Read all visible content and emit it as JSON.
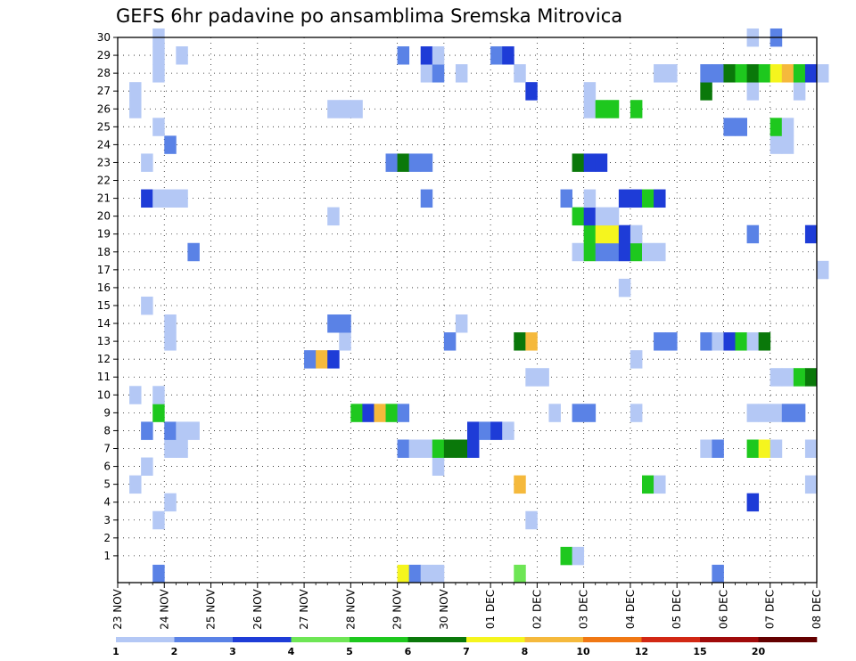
{
  "chart_data": {
    "type": "heatmap",
    "title": "GEFS 6hr padavine po ansamblima Sremska Mitrovica",
    "xlabel": "",
    "ylabel": "",
    "x_step_hours": 6,
    "x_ticks": [
      "23 NOV",
      "24 NOV",
      "25 NOV",
      "26 NOV",
      "27 NOV",
      "28 NOV",
      "29 NOV",
      "30 NOV",
      "01 DEC",
      "02 DEC",
      "03 DEC",
      "04 DEC",
      "05 DEC",
      "06 DEC",
      "07 DEC",
      "08 DEC"
    ],
    "y_ticks": [
      1,
      2,
      3,
      4,
      5,
      6,
      7,
      8,
      9,
      10,
      11,
      12,
      13,
      14,
      15,
      16,
      17,
      18,
      19,
      20,
      21,
      22,
      23,
      24,
      25,
      26,
      27,
      28,
      29,
      30
    ],
    "ylim": [
      0,
      30
    ],
    "grid": true,
    "color_levels": [
      1,
      2,
      3,
      4,
      5,
      6,
      7,
      8,
      10,
      12,
      15,
      20
    ],
    "colorbar_labels": [
      "1",
      "2",
      "3",
      "4",
      "5",
      "6",
      "7",
      "8",
      "10",
      "12",
      "15",
      "20"
    ],
    "colors": [
      "#b4c8f5",
      "#5a82e6",
      "#1e3cd7",
      "#6ee655",
      "#1ec81e",
      "#0a780a",
      "#f5f51e",
      "#f5b93c",
      "#f07814",
      "#d22814",
      "#a00a0a",
      "#640000"
    ],
    "cells": [
      {
        "member": 0,
        "day": "23 NOV",
        "hour": 18,
        "level": 2
      },
      {
        "member": 0,
        "day": "29 NOV",
        "hour": 0,
        "level": 7
      },
      {
        "member": 0,
        "day": "29 NOV",
        "hour": 6,
        "level": 2
      },
      {
        "member": 0,
        "day": "29 NOV",
        "hour": 12,
        "level": 1
      },
      {
        "member": 0,
        "day": "29 NOV",
        "hour": 18,
        "level": 1
      },
      {
        "member": 0,
        "day": "01 DEC",
        "hour": 12,
        "level": 4
      },
      {
        "member": 0,
        "day": "05 DEC",
        "hour": 18,
        "level": 2
      },
      {
        "member": 1,
        "day": "02 DEC",
        "hour": 12,
        "level": 5
      },
      {
        "member": 1,
        "day": "02 DEC",
        "hour": 18,
        "level": 1
      },
      {
        "member": 3,
        "day": "23 NOV",
        "hour": 18,
        "level": 1
      },
      {
        "member": 3,
        "day": "01 DEC",
        "hour": 18,
        "level": 1
      },
      {
        "member": 4,
        "day": "24 NOV",
        "hour": 0,
        "level": 1
      },
      {
        "member": 4,
        "day": "06 DEC",
        "hour": 12,
        "level": 3
      },
      {
        "member": 5,
        "day": "23 NOV",
        "hour": 6,
        "level": 1
      },
      {
        "member": 5,
        "day": "01 DEC",
        "hour": 12,
        "level": 8
      },
      {
        "member": 5,
        "day": "04 DEC",
        "hour": 6,
        "level": 5
      },
      {
        "member": 5,
        "day": "04 DEC",
        "hour": 12,
        "level": 1
      },
      {
        "member": 5,
        "day": "07 DEC",
        "hour": 18,
        "level": 1
      },
      {
        "member": 6,
        "day": "23 NOV",
        "hour": 12,
        "level": 1
      },
      {
        "member": 6,
        "day": "29 NOV",
        "hour": 18,
        "level": 1
      },
      {
        "member": 7,
        "day": "24 NOV",
        "hour": 0,
        "level": 1
      },
      {
        "member": 7,
        "day": "24 NOV",
        "hour": 6,
        "level": 1
      },
      {
        "member": 7,
        "day": "29 NOV",
        "hour": 0,
        "level": 2
      },
      {
        "member": 7,
        "day": "29 NOV",
        "hour": 6,
        "level": 1
      },
      {
        "member": 7,
        "day": "29 NOV",
        "hour": 12,
        "level": 1
      },
      {
        "member": 7,
        "day": "29 NOV",
        "hour": 18,
        "level": 5
      },
      {
        "member": 7,
        "day": "30 NOV",
        "hour": 0,
        "level": 6
      },
      {
        "member": 7,
        "day": "30 NOV",
        "hour": 6,
        "level": 6
      },
      {
        "member": 7,
        "day": "30 NOV",
        "hour": 12,
        "level": 3
      },
      {
        "member": 7,
        "day": "05 DEC",
        "hour": 12,
        "level": 1
      },
      {
        "member": 7,
        "day": "05 DEC",
        "hour": 18,
        "level": 2
      },
      {
        "member": 7,
        "day": "06 DEC",
        "hour": 12,
        "level": 5
      },
      {
        "member": 7,
        "day": "06 DEC",
        "hour": 18,
        "level": 7
      },
      {
        "member": 7,
        "day": "07 DEC",
        "hour": 0,
        "level": 1
      },
      {
        "member": 7,
        "day": "07 DEC",
        "hour": 18,
        "level": 1
      },
      {
        "member": 8,
        "day": "23 NOV",
        "hour": 12,
        "level": 2
      },
      {
        "member": 8,
        "day": "24 NOV",
        "hour": 0,
        "level": 2
      },
      {
        "member": 8,
        "day": "24 NOV",
        "hour": 6,
        "level": 1
      },
      {
        "member": 8,
        "day": "24 NOV",
        "hour": 12,
        "level": 1
      },
      {
        "member": 8,
        "day": "30 NOV",
        "hour": 12,
        "level": 3
      },
      {
        "member": 8,
        "day": "30 NOV",
        "hour": 18,
        "level": 2
      },
      {
        "member": 8,
        "day": "01 DEC",
        "hour": 0,
        "level": 3
      },
      {
        "member": 8,
        "day": "01 DEC",
        "hour": 6,
        "level": 1
      },
      {
        "member": 9,
        "day": "23 NOV",
        "hour": 18,
        "level": 5
      },
      {
        "member": 9,
        "day": "28 NOV",
        "hour": 0,
        "level": 5
      },
      {
        "member": 9,
        "day": "28 NOV",
        "hour": 6,
        "level": 3
      },
      {
        "member": 9,
        "day": "28 NOV",
        "hour": 12,
        "level": 8
      },
      {
        "member": 9,
        "day": "28 NOV",
        "hour": 18,
        "level": 5
      },
      {
        "member": 9,
        "day": "29 NOV",
        "hour": 0,
        "level": 2
      },
      {
        "member": 9,
        "day": "02 DEC",
        "hour": 6,
        "level": 1
      },
      {
        "member": 9,
        "day": "02 DEC",
        "hour": 18,
        "level": 2
      },
      {
        "member": 9,
        "day": "03 DEC",
        "hour": 0,
        "level": 2
      },
      {
        "member": 9,
        "day": "04 DEC",
        "hour": 0,
        "level": 1
      },
      {
        "member": 9,
        "day": "06 DEC",
        "hour": 12,
        "level": 1
      },
      {
        "member": 9,
        "day": "06 DEC",
        "hour": 18,
        "level": 1
      },
      {
        "member": 9,
        "day": "07 DEC",
        "hour": 0,
        "level": 1
      },
      {
        "member": 9,
        "day": "07 DEC",
        "hour": 6,
        "level": 2
      },
      {
        "member": 9,
        "day": "07 DEC",
        "hour": 12,
        "level": 2
      },
      {
        "member": 10,
        "day": "23 NOV",
        "hour": 6,
        "level": 1
      },
      {
        "member": 10,
        "day": "23 NOV",
        "hour": 18,
        "level": 1
      },
      {
        "member": 11,
        "day": "01 DEC",
        "hour": 18,
        "level": 1
      },
      {
        "member": 11,
        "day": "02 DEC",
        "hour": 0,
        "level": 1
      },
      {
        "member": 11,
        "day": "07 DEC",
        "hour": 0,
        "level": 1
      },
      {
        "member": 11,
        "day": "07 DEC",
        "hour": 6,
        "level": 1
      },
      {
        "member": 11,
        "day": "07 DEC",
        "hour": 12,
        "level": 5
      },
      {
        "member": 11,
        "day": "07 DEC",
        "hour": 18,
        "level": 6
      },
      {
        "member": 12,
        "day": "27 NOV",
        "hour": 0,
        "level": 2
      },
      {
        "member": 12,
        "day": "27 NOV",
        "hour": 6,
        "level": 8
      },
      {
        "member": 12,
        "day": "27 NOV",
        "hour": 12,
        "level": 3
      },
      {
        "member": 12,
        "day": "04 DEC",
        "hour": 0,
        "level": 1
      },
      {
        "member": 13,
        "day": "24 NOV",
        "hour": 0,
        "level": 1
      },
      {
        "member": 13,
        "day": "27 NOV",
        "hour": 18,
        "level": 1
      },
      {
        "member": 13,
        "day": "30 NOV",
        "hour": 0,
        "level": 2
      },
      {
        "member": 13,
        "day": "01 DEC",
        "hour": 12,
        "level": 6
      },
      {
        "member": 13,
        "day": "01 DEC",
        "hour": 18,
        "level": 8
      },
      {
        "member": 13,
        "day": "04 DEC",
        "hour": 12,
        "level": 2
      },
      {
        "member": 13,
        "day": "04 DEC",
        "hour": 18,
        "level": 2
      },
      {
        "member": 13,
        "day": "05 DEC",
        "hour": 12,
        "level": 2
      },
      {
        "member": 13,
        "day": "05 DEC",
        "hour": 18,
        "level": 1
      },
      {
        "member": 13,
        "day": "06 DEC",
        "hour": 0,
        "level": 3
      },
      {
        "member": 13,
        "day": "06 DEC",
        "hour": 6,
        "level": 5
      },
      {
        "member": 13,
        "day": "06 DEC",
        "hour": 12,
        "level": 1
      },
      {
        "member": 13,
        "day": "06 DEC",
        "hour": 18,
        "level": 6
      },
      {
        "member": 14,
        "day": "24 NOV",
        "hour": 0,
        "level": 1
      },
      {
        "member": 14,
        "day": "27 NOV",
        "hour": 12,
        "level": 2
      },
      {
        "member": 14,
        "day": "27 NOV",
        "hour": 18,
        "level": 2
      },
      {
        "member": 14,
        "day": "30 NOV",
        "hour": 6,
        "level": 1
      },
      {
        "member": 15,
        "day": "23 NOV",
        "hour": 12,
        "level": 1
      },
      {
        "member": 16,
        "day": "03 DEC",
        "hour": 18,
        "level": 1
      },
      {
        "member": 17,
        "day": "08 DEC",
        "hour": 0,
        "level": 1
      },
      {
        "member": 18,
        "day": "24 NOV",
        "hour": 12,
        "level": 2
      },
      {
        "member": 18,
        "day": "02 DEC",
        "hour": 18,
        "level": 1
      },
      {
        "member": 18,
        "day": "03 DEC",
        "hour": 0,
        "level": 5
      },
      {
        "member": 18,
        "day": "03 DEC",
        "hour": 6,
        "level": 2
      },
      {
        "member": 18,
        "day": "03 DEC",
        "hour": 12,
        "level": 2
      },
      {
        "member": 18,
        "day": "03 DEC",
        "hour": 18,
        "level": 3
      },
      {
        "member": 18,
        "day": "04 DEC",
        "hour": 0,
        "level": 5
      },
      {
        "member": 18,
        "day": "04 DEC",
        "hour": 6,
        "level": 1
      },
      {
        "member": 18,
        "day": "04 DEC",
        "hour": 12,
        "level": 1
      },
      {
        "member": 19,
        "day": "03 DEC",
        "hour": 0,
        "level": 5
      },
      {
        "member": 19,
        "day": "03 DEC",
        "hour": 6,
        "level": 7
      },
      {
        "member": 19,
        "day": "03 DEC",
        "hour": 12,
        "level": 7
      },
      {
        "member": 19,
        "day": "03 DEC",
        "hour": 18,
        "level": 3
      },
      {
        "member": 19,
        "day": "04 DEC",
        "hour": 0,
        "level": 1
      },
      {
        "member": 19,
        "day": "06 DEC",
        "hour": 12,
        "level": 2
      },
      {
        "member": 19,
        "day": "07 DEC",
        "hour": 18,
        "level": 3
      },
      {
        "member": 20,
        "day": "27 NOV",
        "hour": 12,
        "level": 1
      },
      {
        "member": 20,
        "day": "02 DEC",
        "hour": 18,
        "level": 5
      },
      {
        "member": 20,
        "day": "03 DEC",
        "hour": 0,
        "level": 3
      },
      {
        "member": 20,
        "day": "03 DEC",
        "hour": 6,
        "level": 1
      },
      {
        "member": 20,
        "day": "03 DEC",
        "hour": 12,
        "level": 1
      },
      {
        "member": 21,
        "day": "23 NOV",
        "hour": 12,
        "level": 3
      },
      {
        "member": 21,
        "day": "23 NOV",
        "hour": 18,
        "level": 1
      },
      {
        "member": 21,
        "day": "24 NOV",
        "hour": 0,
        "level": 1
      },
      {
        "member": 21,
        "day": "24 NOV",
        "hour": 6,
        "level": 1
      },
      {
        "member": 21,
        "day": "29 NOV",
        "hour": 12,
        "level": 2
      },
      {
        "member": 21,
        "day": "02 DEC",
        "hour": 12,
        "level": 2
      },
      {
        "member": 21,
        "day": "03 DEC",
        "hour": 0,
        "level": 1
      },
      {
        "member": 21,
        "day": "03 DEC",
        "hour": 18,
        "level": 3
      },
      {
        "member": 21,
        "day": "04 DEC",
        "hour": 0,
        "level": 3
      },
      {
        "member": 21,
        "day": "04 DEC",
        "hour": 6,
        "level": 5
      },
      {
        "member": 21,
        "day": "04 DEC",
        "hour": 12,
        "level": 3
      },
      {
        "member": 23,
        "day": "23 NOV",
        "hour": 12,
        "level": 1
      },
      {
        "member": 23,
        "day": "28 NOV",
        "hour": 18,
        "level": 2
      },
      {
        "member": 23,
        "day": "29 NOV",
        "hour": 0,
        "level": 6
      },
      {
        "member": 23,
        "day": "29 NOV",
        "hour": 6,
        "level": 2
      },
      {
        "member": 23,
        "day": "29 NOV",
        "hour": 12,
        "level": 2
      },
      {
        "member": 23,
        "day": "02 DEC",
        "hour": 18,
        "level": 6
      },
      {
        "member": 23,
        "day": "03 DEC",
        "hour": 0,
        "level": 3
      },
      {
        "member": 23,
        "day": "03 DEC",
        "hour": 6,
        "level": 3
      },
      {
        "member": 24,
        "day": "24 NOV",
        "hour": 0,
        "level": 2
      },
      {
        "member": 24,
        "day": "07 DEC",
        "hour": 0,
        "level": 1
      },
      {
        "member": 24,
        "day": "07 DEC",
        "hour": 6,
        "level": 1
      },
      {
        "member": 25,
        "day": "23 NOV",
        "hour": 18,
        "level": 1
      },
      {
        "member": 25,
        "day": "06 DEC",
        "hour": 0,
        "level": 2
      },
      {
        "member": 25,
        "day": "06 DEC",
        "hour": 6,
        "level": 2
      },
      {
        "member": 25,
        "day": "07 DEC",
        "hour": 0,
        "level": 5
      },
      {
        "member": 25,
        "day": "07 DEC",
        "hour": 6,
        "level": 1
      },
      {
        "member": 26,
        "day": "23 NOV",
        "hour": 6,
        "level": 1
      },
      {
        "member": 26,
        "day": "27 NOV",
        "hour": 12,
        "level": 1
      },
      {
        "member": 26,
        "day": "27 NOV",
        "hour": 18,
        "level": 1
      },
      {
        "member": 26,
        "day": "28 NOV",
        "hour": 0,
        "level": 1
      },
      {
        "member": 26,
        "day": "03 DEC",
        "hour": 0,
        "level": 1
      },
      {
        "member": 26,
        "day": "03 DEC",
        "hour": 6,
        "level": 5
      },
      {
        "member": 26,
        "day": "03 DEC",
        "hour": 12,
        "level": 5
      },
      {
        "member": 26,
        "day": "04 DEC",
        "hour": 0,
        "level": 5
      },
      {
        "member": 27,
        "day": "23 NOV",
        "hour": 6,
        "level": 1
      },
      {
        "member": 27,
        "day": "01 DEC",
        "hour": 18,
        "level": 3
      },
      {
        "member": 27,
        "day": "03 DEC",
        "hour": 0,
        "level": 1
      },
      {
        "member": 27,
        "day": "05 DEC",
        "hour": 12,
        "level": 6
      },
      {
        "member": 27,
        "day": "06 DEC",
        "hour": 12,
        "level": 1
      },
      {
        "member": 27,
        "day": "07 DEC",
        "hour": 12,
        "level": 1
      },
      {
        "member": 28,
        "day": "23 NOV",
        "hour": 18,
        "level": 1
      },
      {
        "member": 28,
        "day": "29 NOV",
        "hour": 12,
        "level": 1
      },
      {
        "member": 28,
        "day": "29 NOV",
        "hour": 18,
        "level": 2
      },
      {
        "member": 28,
        "day": "30 NOV",
        "hour": 6,
        "level": 1
      },
      {
        "member": 28,
        "day": "01 DEC",
        "hour": 12,
        "level": 1
      },
      {
        "member": 28,
        "day": "04 DEC",
        "hour": 12,
        "level": 1
      },
      {
        "member": 28,
        "day": "04 DEC",
        "hour": 18,
        "level": 1
      },
      {
        "member": 28,
        "day": "05 DEC",
        "hour": 12,
        "level": 2
      },
      {
        "member": 28,
        "day": "05 DEC",
        "hour": 18,
        "level": 2
      },
      {
        "member": 28,
        "day": "06 DEC",
        "hour": 0,
        "level": 6
      },
      {
        "member": 28,
        "day": "06 DEC",
        "hour": 6,
        "level": 5
      },
      {
        "member": 28,
        "day": "06 DEC",
        "hour": 12,
        "level": 6
      },
      {
        "member": 28,
        "day": "06 DEC",
        "hour": 18,
        "level": 5
      },
      {
        "member": 28,
        "day": "07 DEC",
        "hour": 0,
        "level": 7
      },
      {
        "member": 28,
        "day": "07 DEC",
        "hour": 6,
        "level": 8
      },
      {
        "member": 28,
        "day": "07 DEC",
        "hour": 12,
        "level": 5
      },
      {
        "member": 28,
        "day": "07 DEC",
        "hour": 18,
        "level": 3
      },
      {
        "member": 28,
        "day": "08 DEC",
        "hour": 0,
        "level": 1
      },
      {
        "member": 29,
        "day": "23 NOV",
        "hour": 18,
        "level": 1
      },
      {
        "member": 29,
        "day": "24 NOV",
        "hour": 6,
        "level": 1
      },
      {
        "member": 29,
        "day": "29 NOV",
        "hour": 0,
        "level": 2
      },
      {
        "member": 29,
        "day": "29 NOV",
        "hour": 12,
        "level": 3
      },
      {
        "member": 29,
        "day": "29 NOV",
        "hour": 18,
        "level": 1
      },
      {
        "member": 29,
        "day": "01 DEC",
        "hour": 0,
        "level": 2
      },
      {
        "member": 29,
        "day": "01 DEC",
        "hour": 6,
        "level": 3
      },
      {
        "member": 30,
        "day": "23 NOV",
        "hour": 18,
        "level": 1
      },
      {
        "member": 30,
        "day": "06 DEC",
        "hour": 12,
        "level": 1
      },
      {
        "member": 30,
        "day": "07 DEC",
        "hour": 0,
        "level": 2
      }
    ]
  }
}
